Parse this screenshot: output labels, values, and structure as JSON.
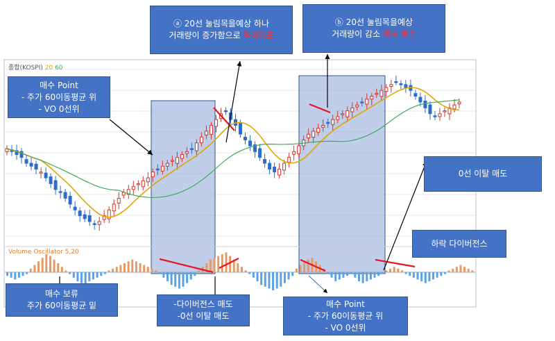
{
  "colors": {
    "up": "#d0352b",
    "down": "#2f6cc9",
    "ma20": "#e3a400",
    "ma60": "#3daa5a",
    "highlight": "#8ea6d8",
    "annotation_box": "#4472c4",
    "trend_line": "#e8151c",
    "osc_pos": "#e59a66",
    "osc_neg": "#5aa2e4"
  },
  "legend": {
    "ticker": "종합(KOSPI)",
    "ma20": "20",
    "ma60": "60",
    "oscillator": "Volume Oscillator 5,20"
  },
  "annotations": {
    "a": {
      "line1": "ⓐ 20선 눌림목을예상 하나",
      "line2": "거래량이 증가함으로",
      "highlight": "적극매도"
    },
    "b": {
      "line1": "ⓑ 20선 눌림목을예상",
      "line2": "거래량이 감소",
      "highlight": "적극 매수"
    },
    "buy1": {
      "line1": "매수 Point",
      "line2": "- 주가 60이동평균 위",
      "line3": "- VO 0선위"
    },
    "zero_sell": {
      "text": "0선 이탈 매도"
    },
    "hold": {
      "line1": "매수 보류",
      "line2": "주가 60이동평균 밑"
    },
    "divergence_sell": {
      "line1": "-다이버전스 매도",
      "line2": "-0선 이탈 매도"
    },
    "buy2": {
      "line1": "매수 Point",
      "line2": "- 주가 60이동평균 위",
      "line3": "- VO 0선위"
    },
    "down_divergence": {
      "text": "하락 다이버전스"
    }
  },
  "chart_data": [
    {
      "type": "candlestick",
      "title": "종합(KOSPI)",
      "series": [
        {
          "name": "20",
          "kind": "moving-average"
        },
        {
          "name": "60",
          "kind": "moving-average"
        }
      ],
      "candles_close": [
        100,
        99,
        98,
        97,
        95,
        94,
        93,
        92,
        90,
        88,
        86,
        85,
        83,
        81,
        79,
        77,
        76,
        75,
        74,
        75,
        77,
        79,
        81,
        83,
        85,
        86,
        87,
        88,
        89,
        90,
        92,
        93,
        94,
        95,
        96,
        97,
        98,
        99,
        100,
        102,
        104,
        106,
        108,
        110,
        112,
        113,
        110,
        108,
        105,
        103,
        101,
        99,
        97,
        95,
        93,
        92,
        93,
        95,
        97,
        99,
        101,
        103,
        105,
        106,
        107,
        108,
        109,
        110,
        111,
        112,
        113,
        114,
        115,
        116,
        117,
        118,
        119,
        120,
        121,
        122,
        123,
        122,
        121,
        120,
        118,
        116,
        114,
        112,
        111,
        112,
        113,
        114,
        115,
        116
      ]
    },
    {
      "type": "bar",
      "title": "Volume Oscillator 5,20",
      "values": [
        -2,
        -3,
        -4,
        -3,
        -2,
        -1,
        2,
        4,
        6,
        8,
        10,
        9,
        7,
        5,
        3,
        1,
        -1,
        -3,
        -5,
        -6,
        -7,
        -5,
        -4,
        -3,
        -2,
        -1,
        1,
        2,
        3,
        4,
        5,
        6,
        7,
        6,
        5,
        4,
        3,
        2,
        1,
        -1,
        -3,
        -5,
        -7,
        -8,
        -9,
        -8,
        -6,
        -4,
        -2,
        1,
        3,
        5,
        7,
        8,
        9,
        10,
        11,
        9,
        7,
        5,
        3,
        1,
        -1,
        -3,
        -5,
        -7,
        -8,
        -9,
        -10,
        -9,
        -8,
        -6,
        -4,
        -2,
        2,
        4,
        6,
        7,
        8,
        6,
        4,
        2,
        -1,
        -3,
        -5,
        -4,
        -3,
        -2,
        -1,
        -3,
        -5,
        -6,
        -5,
        -4,
        -3,
        -2,
        -1,
        1,
        2,
        3,
        2,
        1,
        -1,
        -2,
        -3,
        -4,
        -5,
        -6,
        -5,
        -4,
        -3,
        -2,
        -1,
        1,
        2,
        3,
        4,
        3,
        2,
        1
      ]
    }
  ]
}
